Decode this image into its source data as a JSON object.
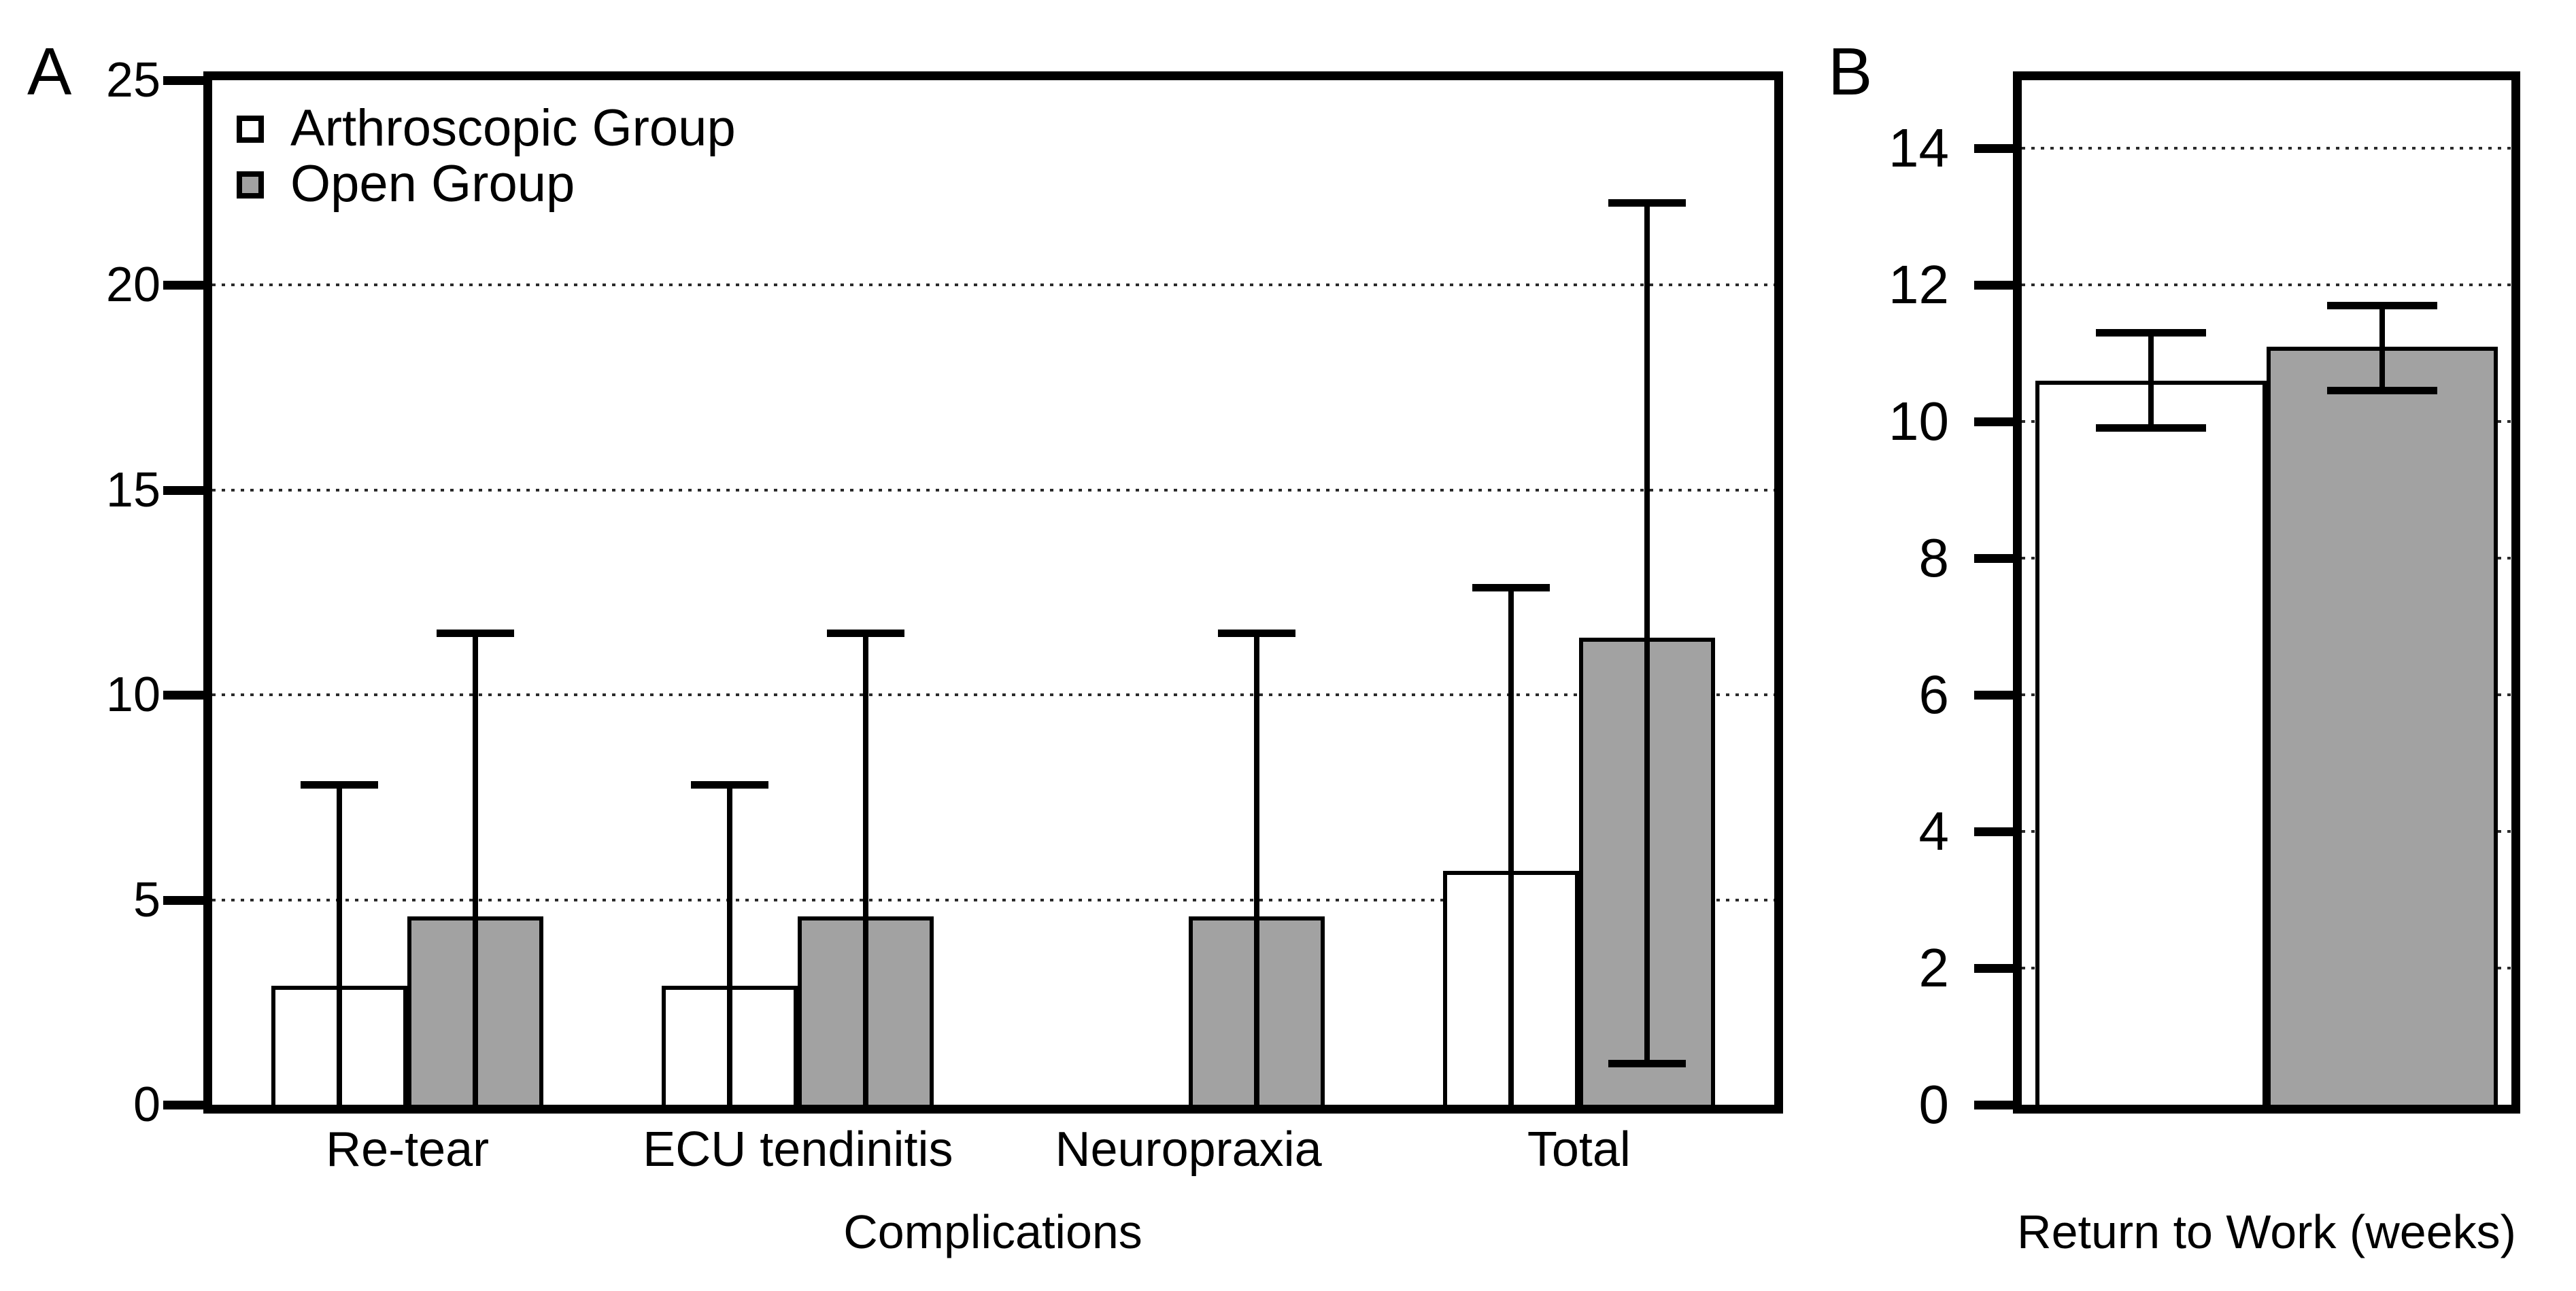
{
  "figure_title": "",
  "chart_data": [
    {
      "type": "bar",
      "panel_label": "A",
      "xlabel": "Complications",
      "ylabel": "",
      "ylim": [
        0,
        25
      ],
      "yticks": [
        0,
        5,
        10,
        15,
        20,
        25
      ],
      "gridlines": [
        5,
        10,
        15,
        20
      ],
      "grid_style": "dotted-horizontal",
      "legend_position": "top-left-inside",
      "categories": [
        "Re-tear",
        "ECU tendinitis",
        "Neuropraxia",
        "Total"
      ],
      "series": [
        {
          "name": "Arthroscopic Group",
          "fill": "#ffffff",
          "values": [
            2.9,
            2.9,
            0,
            5.7
          ],
          "err_hi": [
            7.8,
            7.8,
            null,
            12.6
          ],
          "err_lo": [
            null,
            null,
            null,
            null
          ]
        },
        {
          "name": "Open Group",
          "fill": "#a2a2a2",
          "values": [
            4.6,
            4.6,
            4.6,
            11.4
          ],
          "err_hi": [
            11.5,
            11.5,
            11.5,
            22.0
          ],
          "err_lo": [
            null,
            null,
            null,
            1.0
          ]
        }
      ]
    },
    {
      "type": "bar",
      "panel_label": "B",
      "xlabel": "Return to Work (weeks)",
      "ylabel": "",
      "ylim": [
        0,
        15
      ],
      "yticks": [
        0,
        2,
        4,
        6,
        8,
        10,
        12,
        14
      ],
      "gridlines": [
        2,
        4,
        6,
        8,
        10,
        12,
        14
      ],
      "grid_style": "dotted-horizontal",
      "legend_position": "none",
      "categories": [
        ""
      ],
      "series": [
        {
          "name": "Arthroscopic Group",
          "fill": "#ffffff",
          "values": [
            10.6
          ],
          "err_hi": [
            11.3
          ],
          "err_lo": [
            9.9
          ]
        },
        {
          "name": "Open Group",
          "fill": "#a2a2a2",
          "values": [
            11.1
          ],
          "err_hi": [
            11.7
          ],
          "err_lo": [
            10.45
          ]
        }
      ]
    }
  ],
  "colors": {
    "arthroscopic_fill": "#ffffff",
    "open_fill": "#a2a2a2",
    "line": "#000000",
    "background": "#ffffff"
  }
}
